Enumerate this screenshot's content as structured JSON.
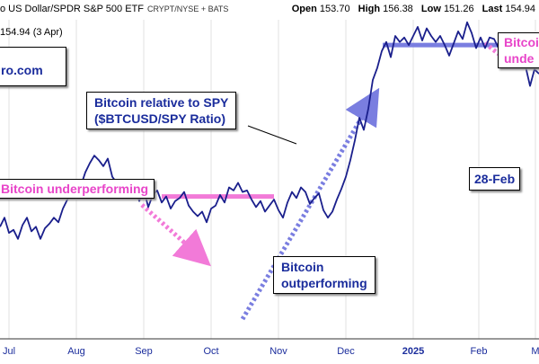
{
  "header": {
    "title": "o US Dollar/SPDR S&P 500 ETF",
    "exchange": "CRYPT/NYSE + BATS",
    "ohlc": [
      {
        "label": "Open",
        "value": "153.70"
      },
      {
        "label": "High",
        "value": "156.38"
      },
      {
        "label": "Low",
        "value": "151.26"
      },
      {
        "label": "Last",
        "value": "154.94"
      }
    ]
  },
  "last_value_text": "154.94 (3 Apr)",
  "logo_text": "ro.com",
  "annotations": {
    "ratio_label_line1": "Bitcoin relative to SPY",
    "ratio_label_line2": "($BTCUSD/SPY Ratio)",
    "underperforming_left": "Bitcoin underperforming",
    "outperforming_line1": "Bitcoin",
    "outperforming_line2": "outperforming",
    "underperforming_right_line1": "Bitcoi",
    "underperforming_right_line2": "unde",
    "date_label": "28-Feb"
  },
  "colors": {
    "price_line": "#1a1f8c",
    "axis_text": "#1a2c9c",
    "pink": "#f27ad8",
    "blue_level": "#7a7ee0",
    "grid": "#e2e2e2"
  },
  "chart_data": {
    "type": "line",
    "title": "",
    "xlabel": "",
    "ylabel": "",
    "x_ticks": [
      "Jul",
      "Aug",
      "Sep",
      "Oct",
      "Nov",
      "Dec",
      "2025",
      "Feb",
      "M"
    ],
    "grid": true,
    "series": [
      {
        "values": [
          74,
          80,
          70,
          72,
          66,
          75,
          80,
          71,
          74,
          66,
          73,
          76,
          80,
          77,
          86,
          92,
          97,
          94,
          101,
          110,
          116,
          121,
          118,
          114,
          119,
          107,
          103,
          99,
          104,
          96,
          102,
          91,
          99,
          87,
          95,
          98,
          90,
          94,
          86,
          91,
          93,
          97,
          88,
          84,
          81,
          84,
          77,
          86,
          88,
          95,
          90,
          100,
          98,
          103,
          97,
          98,
          92,
          87,
          91,
          84,
          88,
          92,
          85,
          80,
          90,
          97,
          93,
          100,
          97,
          89,
          93,
          96,
          85,
          80,
          84,
          92,
          99,
          107,
          118,
          131,
          146,
          138,
          152,
          171,
          179,
          190,
          196,
          186,
          200,
          196,
          199,
          194,
          200,
          206,
          197,
          205,
          200,
          196,
          200,
          194,
          187,
          195,
          203,
          198,
          209,
          202,
          192,
          199,
          192,
          199,
          198,
          192,
          186,
          191,
          186,
          190,
          183,
          180,
          167,
          178,
          175
        ]
      }
    ],
    "reference_lines": [
      {
        "name": "pink_level",
        "y": 94
      },
      {
        "name": "blue_level",
        "y": 194
      }
    ]
  }
}
